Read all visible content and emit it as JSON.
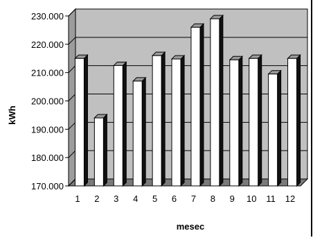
{
  "chart_data": {
    "type": "bar",
    "style": "3d-column",
    "categories": [
      "1",
      "2",
      "3",
      "4",
      "5",
      "6",
      "7",
      "8",
      "9",
      "10",
      "11",
      "12"
    ],
    "values": [
      215000,
      194000,
      212500,
      207000,
      216000,
      214800,
      226000,
      229000,
      214500,
      215000,
      209500,
      215000
    ],
    "ylim": [
      170000,
      230000
    ],
    "ytick_values": [
      170000,
      180000,
      190000,
      200000,
      210000,
      220000,
      230000
    ],
    "ytick_labels": [
      "170.000",
      "180.000",
      "190.000",
      "200.000",
      "210.000",
      "220.000",
      "230.000"
    ],
    "xlabel": "mesec",
    "ylabel": "kWh",
    "title": "",
    "grid": "horizontal",
    "legend": "none",
    "colors": {
      "bar_front": "#ffffff",
      "bar_side": "#111111",
      "bar_top": "#9a9a9a",
      "plot_back": "#c0c0c0",
      "plot_floor": "#7a7a7a",
      "gridline": "#000000"
    }
  }
}
